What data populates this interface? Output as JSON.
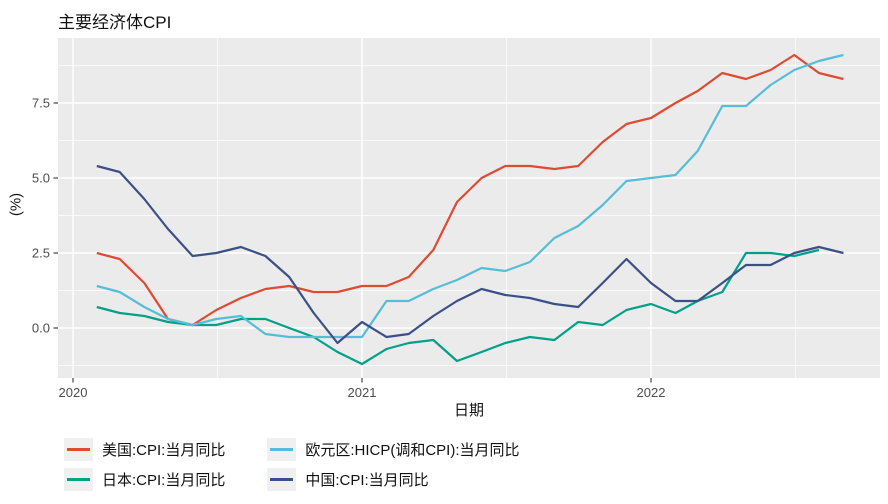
{
  "title": "主要经济体CPI",
  "axes": {
    "x_label": "日期",
    "y_label": "(%)",
    "x_tick_labels": [
      "2020",
      "2021",
      "2022"
    ],
    "y_tick_labels": [
      "0.0",
      "2.5",
      "5.0",
      "7.5"
    ]
  },
  "legend": {
    "position": "bottom",
    "entries": [
      "美国:CPI:当月同比",
      "日本:CPI:当月同比",
      "欧元区:HICP(调和CPI):当月同比",
      "中国:CPI:当月同比"
    ]
  },
  "colors": {
    "panel_background": "#ebebeb",
    "grid_line": "#ffffff",
    "tick_mark": "#333333",
    "tick_label": "#4d4d4d",
    "legend_key_background": "#f0f0f0"
  },
  "chart_data": {
    "type": "line",
    "title": "主要经济体CPI",
    "xlabel": "日期",
    "ylabel": "(%)",
    "x_unit": "monthly, points at month end",
    "x_start": "2020-01",
    "x_tick_years": [
      2020,
      2021,
      2022
    ],
    "y_major_ticks": [
      0.0,
      2.5,
      5.0,
      7.5
    ],
    "y_minor_ticks": [
      -1.25,
      1.25,
      3.75,
      6.25,
      8.75
    ],
    "ylim": [
      -1.67,
      9.67
    ],
    "grid": true,
    "legend_position": "bottom",
    "series": [
      {
        "name": "美国:CPI:当月同比",
        "color": "#dd4b33",
        "values": [
          2.5,
          2.3,
          1.5,
          0.3,
          0.1,
          0.6,
          1.0,
          1.3,
          1.4,
          1.2,
          1.2,
          1.4,
          1.4,
          1.7,
          2.6,
          4.2,
          5.0,
          5.4,
          5.4,
          5.3,
          5.4,
          6.2,
          6.8,
          7.0,
          7.5,
          7.9,
          8.5,
          8.3,
          8.6,
          9.1,
          8.5,
          8.3
        ]
      },
      {
        "name": "日本:CPI:当月同比",
        "color": "#00a188",
        "values": [
          0.7,
          0.5,
          0.4,
          0.2,
          0.1,
          0.1,
          0.3,
          0.3,
          0.0,
          -0.3,
          -0.8,
          -1.2,
          -0.7,
          -0.5,
          -0.4,
          -1.1,
          -0.8,
          -0.5,
          -0.3,
          -0.4,
          0.2,
          0.1,
          0.6,
          0.8,
          0.5,
          0.9,
          1.2,
          2.5,
          2.5,
          2.4,
          2.6
        ]
      },
      {
        "name": "欧元区:HICP(调和CPI):当月同比",
        "color": "#56bdd9",
        "values": [
          1.4,
          1.2,
          0.7,
          0.3,
          0.1,
          0.3,
          0.4,
          -0.2,
          -0.3,
          -0.3,
          -0.3,
          -0.3,
          0.9,
          0.9,
          1.3,
          1.6,
          2.0,
          1.9,
          2.2,
          3.0,
          3.4,
          4.1,
          4.9,
          5.0,
          5.1,
          5.9,
          7.4,
          7.4,
          8.1,
          8.6,
          8.9,
          9.1
        ]
      },
      {
        "name": "中国:CPI:当月同比",
        "color": "#3a5086",
        "values": [
          5.4,
          5.2,
          4.3,
          3.3,
          2.4,
          2.5,
          2.7,
          2.4,
          1.7,
          0.5,
          -0.5,
          0.2,
          -0.3,
          -0.2,
          0.4,
          0.9,
          1.3,
          1.1,
          1.0,
          0.8,
          0.7,
          1.5,
          2.3,
          1.5,
          0.9,
          0.9,
          1.5,
          2.1,
          2.1,
          2.5,
          2.7,
          2.5
        ]
      }
    ]
  }
}
